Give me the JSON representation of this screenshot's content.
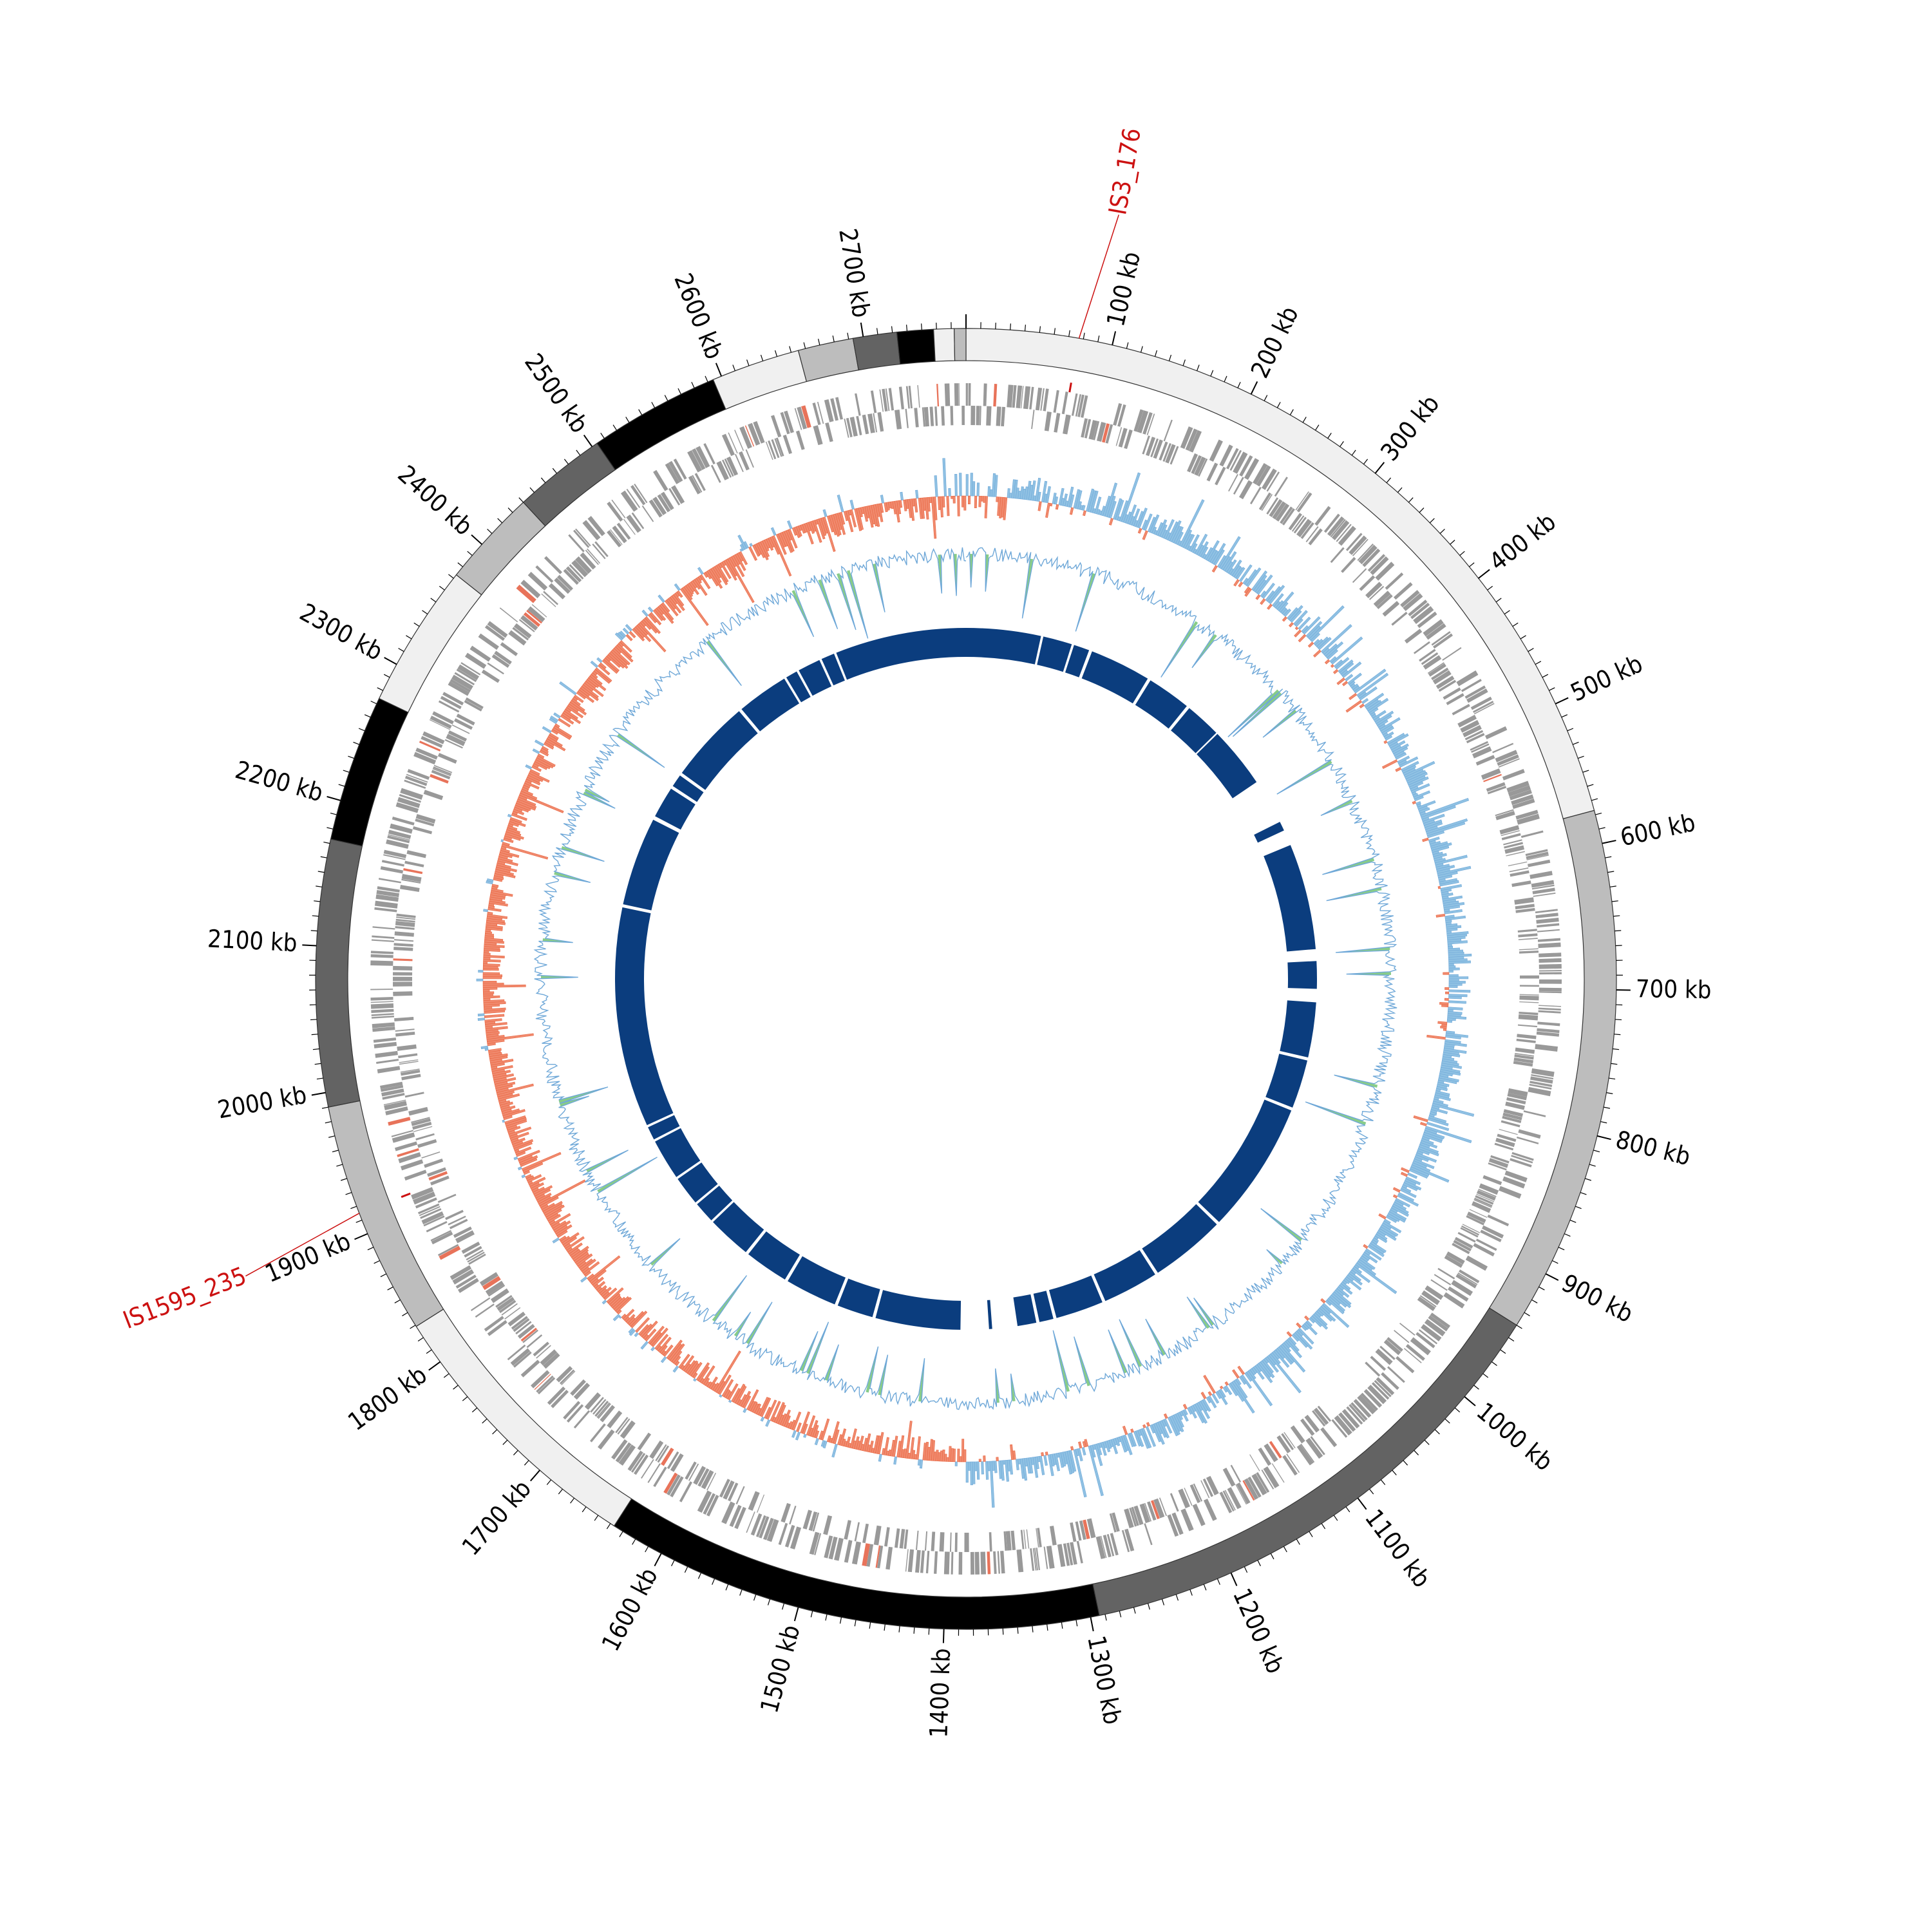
{
  "genome": {
    "length_kb": 2770,
    "contig_blocks_kb": [
      {
        "start": 0,
        "end": 577,
        "color": "#f0f0f0"
      },
      {
        "start": 577,
        "end": 940,
        "color": "#bdbdbd"
      },
      {
        "start": 940,
        "end": 1294,
        "color": "#636363"
      },
      {
        "start": 1294,
        "end": 1637,
        "color": "#000000"
      },
      {
        "start": 1637,
        "end": 1829,
        "color": "#f0f0f0"
      },
      {
        "start": 1829,
        "end": 1990,
        "color": "#bdbdbd"
      },
      {
        "start": 1990,
        "end": 2173,
        "color": "#636363"
      },
      {
        "start": 2173,
        "end": 2274,
        "color": "#000000"
      },
      {
        "start": 2274,
        "end": 2373,
        "color": "#f0f0f0"
      },
      {
        "start": 2373,
        "end": 2440,
        "color": "#bdbdbd"
      },
      {
        "start": 2440,
        "end": 2504,
        "color": "#636363"
      },
      {
        "start": 2504,
        "end": 2594,
        "color": "#000000"
      },
      {
        "start": 2594,
        "end": 2655,
        "color": "#f0f0f0"
      },
      {
        "start": 2655,
        "end": 2693,
        "color": "#bdbdbd"
      },
      {
        "start": 2693,
        "end": 2723,
        "color": "#636363"
      },
      {
        "start": 2723,
        "end": 2748,
        "color": "#000000"
      },
      {
        "start": 2748,
        "end": 2762,
        "color": "#f0f0f0"
      },
      {
        "start": 2762,
        "end": 2770,
        "color": "#bdbdbd"
      }
    ]
  },
  "ticks": [
    {
      "pos": 100,
      "label": "100 kb"
    },
    {
      "pos": 200,
      "label": "200 kb"
    },
    {
      "pos": 300,
      "label": "300 kb"
    },
    {
      "pos": 400,
      "label": "400 kb"
    },
    {
      "pos": 500,
      "label": "500 kb"
    },
    {
      "pos": 600,
      "label": "600 kb"
    },
    {
      "pos": 700,
      "label": "700 kb"
    },
    {
      "pos": 800,
      "label": "800 kb"
    },
    {
      "pos": 900,
      "label": "900 kb"
    },
    {
      "pos": 1000,
      "label": "1000 kb"
    },
    {
      "pos": 1100,
      "label": "1100 kb"
    },
    {
      "pos": 1200,
      "label": "1200 kb"
    },
    {
      "pos": 1300,
      "label": "1300 kb"
    },
    {
      "pos": 1400,
      "label": "1400 kb"
    },
    {
      "pos": 1500,
      "label": "1500 kb"
    },
    {
      "pos": 1600,
      "label": "1600 kb"
    },
    {
      "pos": 1700,
      "label": "1700 kb"
    },
    {
      "pos": 1800,
      "label": "1800 kb"
    },
    {
      "pos": 1900,
      "label": "1900 kb"
    },
    {
      "pos": 2000,
      "label": "2000 kb"
    },
    {
      "pos": 2100,
      "label": "2100 kb"
    },
    {
      "pos": 2200,
      "label": "2200 kb"
    },
    {
      "pos": 2300,
      "label": "2300 kb"
    },
    {
      "pos": 2400,
      "label": "2400 kb"
    },
    {
      "pos": 2500,
      "label": "2500 kb"
    },
    {
      "pos": 2600,
      "label": "2600 kb"
    },
    {
      "pos": 2700,
      "label": "2700 kb"
    }
  ],
  "annotations": [
    {
      "label": "IS3_176",
      "pos": 77,
      "color": "#cc1111"
    },
    {
      "label": "IS1595_235",
      "pos": 1915,
      "color": "#cc1111"
    }
  ],
  "colors": {
    "gene_forward": "#999999",
    "gene_highlight": "#e8735a",
    "gc_skew_positive": "#8fc1e3",
    "gc_skew_negative": "#f08a6e",
    "gc_content_line": "#6fa8d8",
    "gc_content_fill": "#88cc88",
    "synteny": "#0b3d7e"
  },
  "synteny_blocks_kb": [
    [
      0,
      95
    ],
    [
      98,
      135
    ],
    [
      138,
      158
    ],
    [
      162,
      240
    ],
    [
      244,
      300
    ],
    [
      304,
      350
    ],
    [
      352,
      430
    ],
    [
      488,
      500
    ],
    [
      520,
      655
    ],
    [
      670,
      705
    ],
    [
      722,
      792
    ],
    [
      796,
      858
    ],
    [
      862,
      1030
    ],
    [
      1034,
      1130
    ],
    [
      1134,
      1205
    ],
    [
      1209,
      1270
    ],
    [
      1274,
      1292
    ],
    [
      1296,
      1320
    ],
    [
      1352,
      1356
    ],
    [
      1392,
      1500
    ],
    [
      1504,
      1550
    ],
    [
      1554,
      1620
    ],
    [
      1624,
      1680
    ],
    [
      1684,
      1740
    ],
    [
      1743,
      1770
    ],
    [
      1773,
      1810
    ],
    [
      1813,
      1865
    ],
    [
      1868,
      1885
    ],
    [
      1888,
      2168
    ],
    [
      2172,
      2285
    ],
    [
      2290,
      2330
    ],
    [
      2334,
      2350
    ],
    [
      2354,
      2460
    ],
    [
      2464,
      2530
    ],
    [
      2533,
      2548
    ],
    [
      2551,
      2580
    ],
    [
      2583,
      2600
    ],
    [
      2603,
      2770
    ]
  ]
}
